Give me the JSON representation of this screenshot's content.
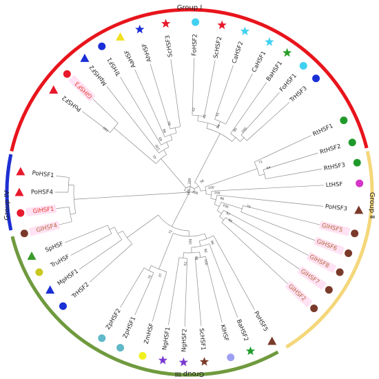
{
  "groups": [
    {
      "label": "Group Ⅰ",
      "color": "#e8141c"
    },
    {
      "label": "Group Ⅱ",
      "color": "#f4d77a"
    },
    {
      "label": "Group III",
      "color": "#6f9a3e"
    },
    {
      "label": "Group IV",
      "color": "#1d2fd1"
    }
  ],
  "leaves": [
    {
      "name": "PoHSF2",
      "marker": "triangle",
      "color": "#e8192c",
      "hl": ""
    },
    {
      "name": "GlHSF3",
      "marker": "circle",
      "color": "#e8192c",
      "hl": "red"
    },
    {
      "name": "MpHSF2",
      "marker": "triangle",
      "color": "#1a2fd6",
      "hl": ""
    },
    {
      "name": "TrHSF1",
      "marker": "circle",
      "color": "#1a2fd6",
      "hl": ""
    },
    {
      "name": "AaHSF",
      "marker": "triangle",
      "color": "#f0e020",
      "hl": ""
    },
    {
      "name": "AhHSF",
      "marker": "star",
      "color": "#1a2fd6",
      "hl": ""
    },
    {
      "name": "ScHSF3",
      "marker": "star",
      "color": "#e8192c",
      "hl": ""
    },
    {
      "name": "FoHSF2",
      "marker": "circle",
      "color": "#40d0f0",
      "hl": ""
    },
    {
      "name": "ScHSF2",
      "marker": "star",
      "color": "#e8192c",
      "hl": ""
    },
    {
      "name": "CaHSF2",
      "marker": "star",
      "color": "#40d0f0",
      "hl": ""
    },
    {
      "name": "CaHSF1",
      "marker": "star",
      "color": "#40d0f0",
      "hl": ""
    },
    {
      "name": "BaHSF1",
      "marker": "star",
      "color": "#2aa02a",
      "hl": ""
    },
    {
      "name": "FoHSF1",
      "marker": "circle",
      "color": "#40d0f0",
      "hl": ""
    },
    {
      "name": "TrHSF3",
      "marker": "circle",
      "color": "#1a2fd6",
      "hl": ""
    },
    {
      "name": "RtHSF1",
      "marker": "circle",
      "color": "#1f9a2a",
      "hl": ""
    },
    {
      "name": "RtHSF2",
      "marker": "circle",
      "color": "#1f9a2a",
      "hl": ""
    },
    {
      "name": "RtHSF3",
      "marker": "circle",
      "color": "#1f9a2a",
      "hl": ""
    },
    {
      "name": "LtHSF",
      "marker": "circle",
      "color": "#d535c8",
      "hl": ""
    },
    {
      "name": "PoHSF3",
      "marker": "triangle",
      "color": "#7a3a2a",
      "hl": ""
    },
    {
      "name": "GlHSF5",
      "marker": "circle",
      "color": "#7a3a2a",
      "hl": "brown"
    },
    {
      "name": "GlHSF6",
      "marker": "circle",
      "color": "#7a3a2a",
      "hl": "brown"
    },
    {
      "name": "GlHSF8",
      "marker": "circle",
      "color": "#7a3a2a",
      "hl": "brown"
    },
    {
      "name": "GlHSF7",
      "marker": "circle",
      "color": "#7a3a2a",
      "hl": "brown"
    },
    {
      "name": "GlHSF2",
      "marker": "circle",
      "color": "#7a3a2a",
      "hl": "brown"
    },
    {
      "name": "PoHSF5",
      "marker": "triangle",
      "color": "#7a3a2a",
      "hl": ""
    },
    {
      "name": "BaHSF2",
      "marker": "star",
      "color": "#1f9a2a",
      "hl": ""
    },
    {
      "name": "KlHSF",
      "marker": "circle",
      "color": "#9e9ef2",
      "hl": ""
    },
    {
      "name": "ScHSF1",
      "marker": "star",
      "color": "#7a3a2a",
      "hl": ""
    },
    {
      "name": "NgHSF2",
      "marker": "star",
      "color": "#7a3ad0",
      "hl": ""
    },
    {
      "name": "NgHSF1",
      "marker": "star",
      "color": "#7a3ad0",
      "hl": ""
    },
    {
      "name": "ZmHSF",
      "marker": "circle",
      "color": "#f0f020",
      "hl": ""
    },
    {
      "name": "ZpHSF1",
      "marker": "circle",
      "color": "#60b8c8",
      "hl": ""
    },
    {
      "name": "ZpHSF2",
      "marker": "circle",
      "color": "#60b8c8",
      "hl": ""
    },
    {
      "name": "TrHSF2",
      "marker": "circle",
      "color": "#1a2fd6",
      "hl": ""
    },
    {
      "name": "MpHSF1",
      "marker": "triangle",
      "color": "#1a2fd6",
      "hl": ""
    },
    {
      "name": "TruHSF",
      "marker": "circle",
      "color": "#c8c820",
      "hl": ""
    },
    {
      "name": "SpHSF",
      "marker": "triangle",
      "color": "#3a9a2a",
      "hl": ""
    },
    {
      "name": "GlHSF4",
      "marker": "circle",
      "color": "#7a3a2a",
      "hl": "brown"
    },
    {
      "name": "GlHSF1",
      "marker": "circle",
      "color": "#e8192c",
      "hl": "red"
    },
    {
      "name": "PoHSF4",
      "marker": "triangle",
      "color": "#e8192c",
      "hl": ""
    },
    {
      "name": "PoHSF1",
      "marker": "triangle",
      "color": "#e8192c",
      "hl": ""
    }
  ],
  "bootstrap": [
    "100",
    "100",
    "100",
    "41",
    "100",
    "100",
    "85",
    "98",
    "85",
    "56",
    "94",
    "45",
    "42",
    "61",
    "90",
    "100",
    "100",
    "71",
    "64",
    "100",
    "96",
    "100",
    "70",
    "97",
    "69",
    "71",
    "100",
    "96",
    "82",
    "99",
    "100",
    "52",
    "37",
    "75"
  ],
  "colors": {
    "branch": "#8a8a8a",
    "highlight": "#ffd6ee"
  }
}
